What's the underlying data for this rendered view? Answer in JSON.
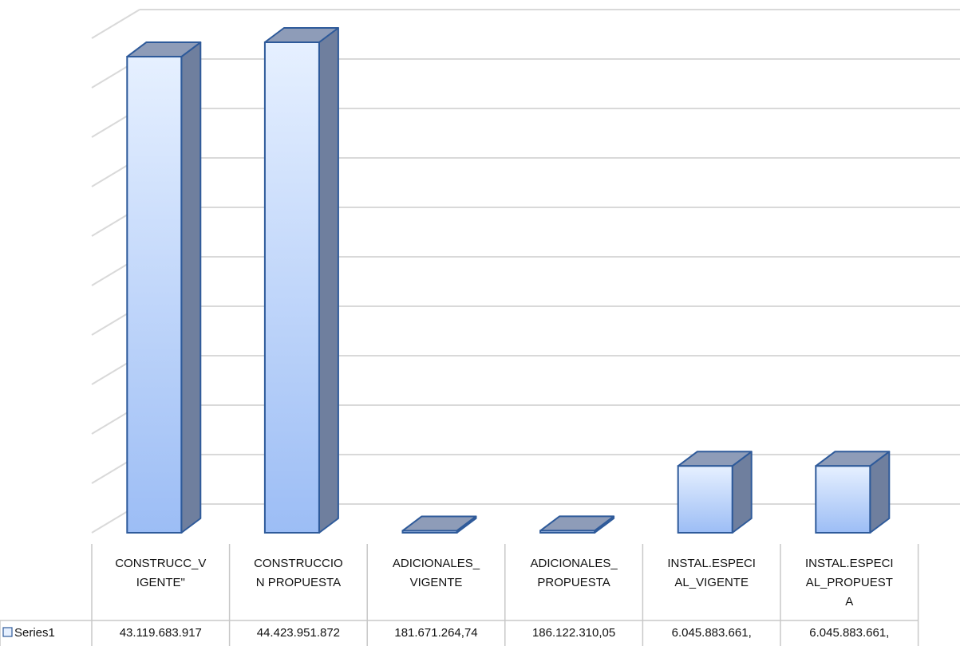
{
  "chart_data": {
    "type": "bar",
    "title": "",
    "xlabel": "",
    "ylabel": "",
    "grid": true,
    "legend": "data-table",
    "categories": [
      [
        "CONSTRUCC_V",
        "IGENTE\""
      ],
      [
        "CONSTRUCCIO",
        "N PROPUESTA"
      ],
      [
        "ADICIONALES_",
        "VIGENTE"
      ],
      [
        "ADICIONALES_",
        "PROPUESTA"
      ],
      [
        "INSTAL.ESPECI",
        "AL_VIGENTE"
      ],
      [
        "INSTAL.ESPECI",
        "AL_PROPUEST",
        "A"
      ]
    ],
    "series": [
      {
        "name": "Series1",
        "values": [
          43119683917,
          44423951872,
          181671264.74,
          186122310.05,
          6045883661,
          6045883661
        ],
        "labels": [
          "43.119.683.917",
          "44.423.951.872",
          "181.671.264,74",
          "186.122.310,05",
          "6.045.883.661,",
          "6.045.883.661,"
        ]
      }
    ],
    "ylim": [
      0,
      45000000000
    ],
    "colors": {
      "bar_front_top": "#e6f0ff",
      "bar_front_bottom": "#9cbdf5",
      "bar_side": "#6f7f9e",
      "bar_top": "#8e9cb8",
      "bar_stroke": "#2e5a9a",
      "grid": "#d9d9d9",
      "table_border": "#c8c8c8"
    }
  }
}
